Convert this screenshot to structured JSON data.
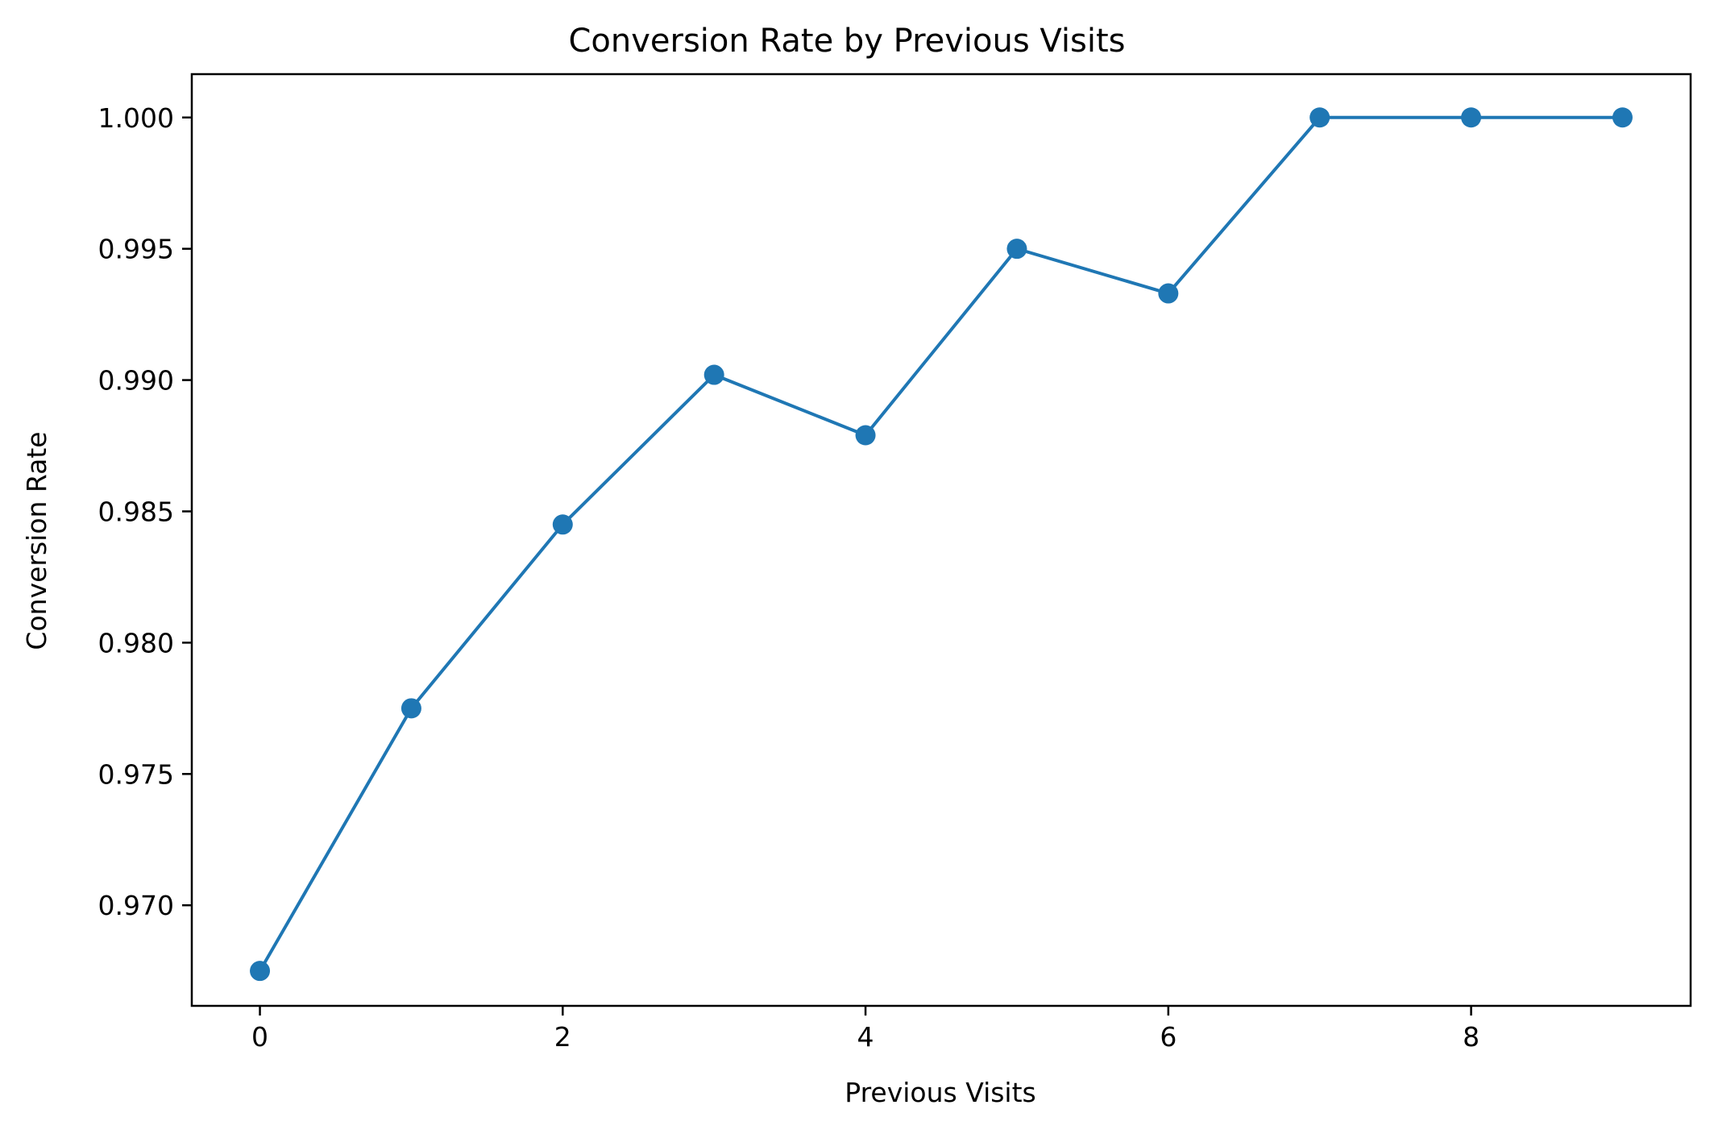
{
  "chart_data": {
    "type": "line",
    "title": "Conversion Rate by Previous Visits",
    "xlabel": "Previous Visits",
    "ylabel": "Conversion Rate",
    "x": [
      0,
      1,
      2,
      3,
      4,
      5,
      6,
      7,
      8,
      9
    ],
    "series": [
      {
        "values": [
          0.9675,
          0.9775,
          0.9845,
          0.9902,
          0.9879,
          0.995,
          0.9933,
          1.0,
          1.0,
          1.0
        ],
        "color": "#1f77b4",
        "marker": "circle"
      }
    ],
    "xlim": [
      -0.45,
      9.45
    ],
    "ylim": [
      0.96617,
      1.00165
    ],
    "xticks": [
      0,
      2,
      4,
      6,
      8
    ],
    "xtick_labels": [
      "0",
      "2",
      "4",
      "6",
      "8"
    ],
    "yticks": [
      0.97,
      0.975,
      0.98,
      0.985,
      0.99,
      0.995,
      1.0
    ],
    "ytick_labels": [
      "0.970",
      "0.975",
      "0.980",
      "0.985",
      "0.990",
      "0.995",
      "1.000"
    ],
    "grid": false,
    "legend": "none"
  }
}
